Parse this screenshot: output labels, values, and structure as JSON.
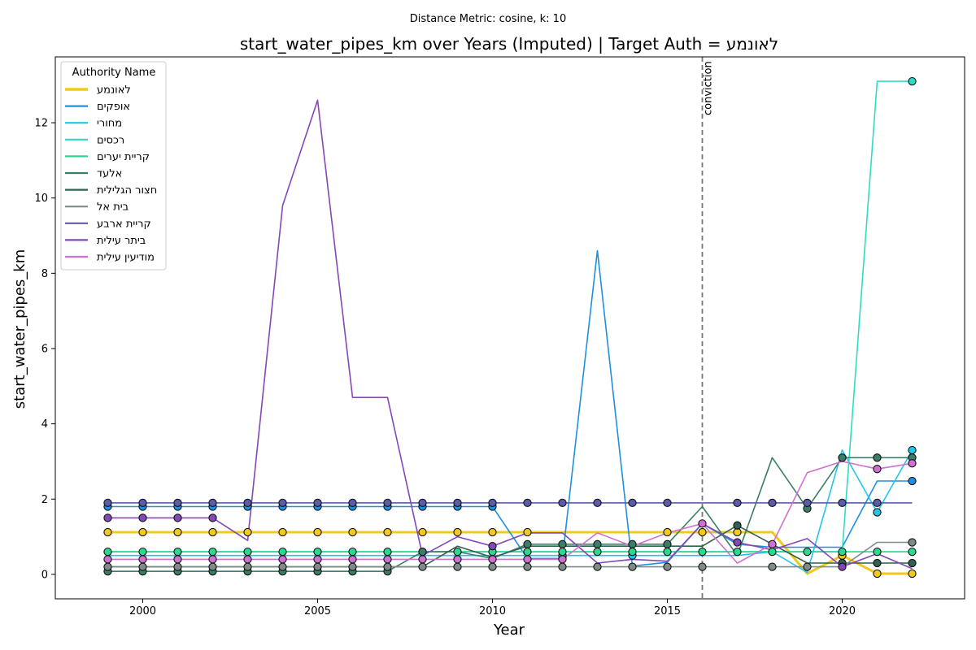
{
  "figure": {
    "suptitle": "Distance Metric: cosine, k: 10",
    "title": "start_water_pipes_km over Years (Imputed) | Target Auth = לאונמע"
  },
  "chart_data": {
    "type": "line",
    "title": "start_water_pipes_km over Years (Imputed) | Target Auth = לאונמע",
    "xlabel": "Year",
    "ylabel": "start_water_pipes_km",
    "xlim": [
      1997.5,
      2023.5
    ],
    "ylim": [
      -0.65,
      13.75
    ],
    "x_ticks": [
      2000,
      2005,
      2010,
      2015,
      2020
    ],
    "y_ticks": [
      0,
      2,
      4,
      6,
      8,
      10,
      12
    ],
    "grid": false,
    "legend_title": "Authority Name",
    "legend_position": "upper-left",
    "x": [
      1999,
      2000,
      2001,
      2002,
      2003,
      2004,
      2005,
      2006,
      2007,
      2008,
      2009,
      2010,
      2011,
      2012,
      2013,
      2014,
      2015,
      2016,
      2017,
      2018,
      2019,
      2020,
      2021,
      2022
    ],
    "vline": {
      "x": 2016,
      "label": "conviction",
      "color": "#777777"
    },
    "series": [
      {
        "name": "לאונמע",
        "color": "#f2c91c",
        "width": 3,
        "values": [
          1.12,
          1.12,
          1.12,
          1.12,
          1.12,
          1.12,
          1.12,
          1.12,
          1.12,
          1.12,
          1.12,
          1.12,
          1.12,
          1.12,
          1.12,
          1.12,
          1.12,
          1.12,
          1.12,
          1.12,
          0.02,
          0.5,
          0.02,
          0.02
        ],
        "markers": [
          true,
          true,
          true,
          true,
          true,
          true,
          true,
          true,
          true,
          true,
          true,
          true,
          true,
          false,
          false,
          false,
          true,
          true,
          true,
          false,
          false,
          true,
          true,
          true
        ]
      },
      {
        "name": "אופקים",
        "color": "#1f8fe0",
        "width": 1.6,
        "values": [
          1.8,
          1.8,
          1.8,
          1.8,
          1.8,
          1.8,
          1.8,
          1.8,
          1.8,
          1.8,
          1.8,
          1.8,
          0.42,
          0.42,
          8.6,
          0.22,
          0.32,
          1.35,
          0.8,
          0.72,
          0.72,
          0.72,
          2.48,
          2.48
        ],
        "markers": [
          true,
          true,
          true,
          true,
          true,
          true,
          true,
          true,
          true,
          true,
          true,
          true,
          false,
          true,
          false,
          false,
          false,
          false,
          false,
          false,
          false,
          false,
          false,
          true
        ]
      },
      {
        "name": "מחורי",
        "color": "#23c6ea",
        "width": 1.6,
        "values": [
          0.5,
          0.5,
          0.5,
          0.5,
          0.5,
          0.5,
          0.5,
          0.5,
          0.5,
          0.5,
          0.5,
          0.5,
          0.5,
          0.5,
          0.5,
          0.5,
          0.5,
          0.5,
          0.5,
          0.6,
          0.05,
          3.3,
          1.65,
          3.3
        ],
        "markers": [
          false,
          false,
          false,
          false,
          false,
          false,
          false,
          false,
          false,
          false,
          false,
          false,
          false,
          true,
          false,
          true,
          false,
          false,
          false,
          false,
          false,
          false,
          true,
          true
        ]
      },
      {
        "name": "רכסים",
        "color": "#2edcc4",
        "width": 1.6,
        "values": [
          0.6,
          0.6,
          0.6,
          0.6,
          0.6,
          0.6,
          0.6,
          0.6,
          0.6,
          0.6,
          0.6,
          0.6,
          0.6,
          0.6,
          0.6,
          0.6,
          0.6,
          0.6,
          0.6,
          0.6,
          0.6,
          0.6,
          13.1,
          13.1
        ],
        "markers": [
          false,
          false,
          false,
          false,
          false,
          false,
          false,
          false,
          false,
          false,
          false,
          false,
          false,
          false,
          false,
          false,
          false,
          false,
          false,
          false,
          false,
          false,
          false,
          true
        ]
      },
      {
        "name": "קריית יערים",
        "color": "#2ed68e",
        "width": 1.6,
        "values": [
          0.6,
          0.6,
          0.6,
          0.6,
          0.6,
          0.6,
          0.6,
          0.6,
          0.6,
          0.6,
          0.6,
          0.6,
          0.6,
          0.6,
          0.6,
          0.6,
          0.6,
          0.6,
          0.6,
          0.6,
          0.6,
          0.6,
          0.6,
          0.6
        ],
        "markers": [
          true,
          true,
          true,
          true,
          true,
          true,
          true,
          true,
          true,
          true,
          true,
          true,
          true,
          true,
          true,
          true,
          true,
          true,
          true,
          true,
          true,
          true,
          true,
          true
        ]
      },
      {
        "name": "אלעד",
        "color": "#3b7d66",
        "width": 1.6,
        "values": [
          0.08,
          0.08,
          0.08,
          0.08,
          0.08,
          0.08,
          0.08,
          0.08,
          0.08,
          0.6,
          0.6,
          0.42,
          0.8,
          0.8,
          0.8,
          0.8,
          0.8,
          1.8,
          0.5,
          3.1,
          1.75,
          3.1,
          3.1,
          3.1
        ],
        "markers": [
          true,
          true,
          true,
          true,
          true,
          true,
          true,
          true,
          true,
          true,
          false,
          false,
          true,
          true,
          true,
          true,
          true,
          false,
          false,
          false,
          true,
          true,
          true,
          true
        ]
      },
      {
        "name": "חצור הגלילית",
        "color": "#2f6151",
        "width": 1.6,
        "values": [
          0.2,
          0.2,
          0.2,
          0.2,
          0.2,
          0.2,
          0.2,
          0.2,
          0.2,
          0.2,
          0.75,
          0.45,
          0.75,
          0.75,
          0.75,
          0.75,
          0.75,
          0.75,
          1.3,
          0.8,
          0.3,
          0.3,
          0.3,
          0.3
        ],
        "markers": [
          false,
          false,
          false,
          false,
          false,
          false,
          false,
          false,
          false,
          false,
          false,
          false,
          false,
          false,
          false,
          false,
          false,
          false,
          true,
          false,
          false,
          true,
          true,
          true
        ]
      },
      {
        "name": "בית אל",
        "color": "#7d8c86",
        "width": 1.6,
        "values": [
          0.2,
          0.2,
          0.2,
          0.2,
          0.2,
          0.2,
          0.2,
          0.2,
          0.2,
          0.2,
          0.2,
          0.2,
          0.2,
          0.2,
          0.2,
          0.2,
          0.2,
          0.2,
          0.2,
          0.2,
          0.2,
          0.2,
          0.85,
          0.85
        ],
        "markers": [
          true,
          true,
          true,
          true,
          true,
          true,
          true,
          true,
          true,
          true,
          true,
          true,
          true,
          true,
          true,
          true,
          true,
          true,
          false,
          true,
          true,
          false,
          false,
          true
        ]
      },
      {
        "name": "קריית ארבע",
        "color": "#5b5ba8",
        "width": 1.6,
        "values": [
          1.9,
          1.9,
          1.9,
          1.9,
          1.9,
          1.9,
          1.9,
          1.9,
          1.9,
          1.9,
          1.9,
          1.9,
          1.9,
          1.9,
          1.9,
          1.9,
          1.9,
          1.9,
          1.9,
          1.9,
          1.9,
          1.9,
          1.9,
          1.9
        ],
        "markers": [
          true,
          true,
          true,
          true,
          true,
          true,
          true,
          true,
          true,
          true,
          true,
          true,
          true,
          true,
          true,
          true,
          true,
          false,
          true,
          true,
          true,
          true,
          true,
          false
        ]
      },
      {
        "name": "ביתר עילית",
        "color": "#8447b8",
        "width": 1.6,
        "values": [
          1.5,
          1.5,
          1.5,
          1.5,
          0.9,
          9.8,
          12.6,
          4.7,
          4.7,
          0.5,
          1.0,
          0.75,
          1.1,
          1.1,
          0.3,
          0.4,
          0.35,
          1.35,
          0.85,
          0.65,
          0.95,
          0.2,
          0.55,
          0.15
        ],
        "markers": [
          true,
          true,
          true,
          true,
          false,
          false,
          false,
          false,
          false,
          false,
          false,
          true,
          false,
          false,
          false,
          false,
          false,
          false,
          true,
          false,
          false,
          true,
          false,
          false
        ]
      },
      {
        "name": "מודיעין עילית",
        "color": "#d070d0",
        "width": 1.6,
        "values": [
          0.4,
          0.4,
          0.4,
          0.4,
          0.4,
          0.4,
          0.4,
          0.4,
          0.4,
          0.4,
          0.4,
          0.4,
          0.4,
          0.4,
          1.1,
          0.75,
          1.1,
          1.35,
          0.3,
          0.8,
          2.7,
          3.0,
          2.8,
          2.95
        ],
        "markers": [
          true,
          true,
          true,
          true,
          true,
          true,
          true,
          true,
          true,
          true,
          true,
          true,
          true,
          true,
          false,
          false,
          false,
          true,
          false,
          true,
          false,
          false,
          true,
          true
        ]
      }
    ]
  }
}
